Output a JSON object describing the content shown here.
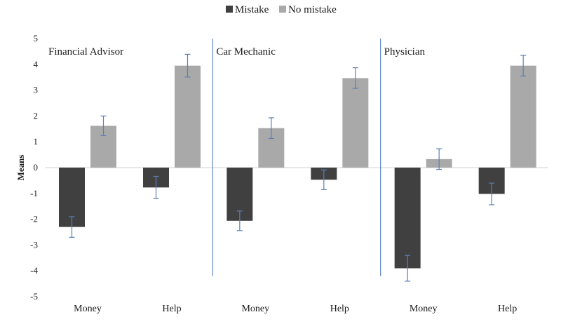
{
  "chart_data": {
    "type": "bar",
    "ylabel": "Means",
    "ylim": [
      -5,
      5
    ],
    "yticks": [
      -5,
      -4,
      -3,
      -2,
      -1,
      0,
      1,
      2,
      3,
      4,
      5
    ],
    "legend_position": "top-center",
    "grid": false,
    "panels": [
      {
        "label": "Financial Advisor",
        "categories": [
          "Money",
          "Help"
        ],
        "series": [
          {
            "name": "Mistake",
            "values": [
              -2.3,
              -0.77
            ],
            "error": [
              0.4,
              0.43
            ]
          },
          {
            "name": "No mistake",
            "values": [
              1.62,
              3.95
            ],
            "error": [
              0.38,
              0.44
            ]
          }
        ]
      },
      {
        "label": "Car Mechanic",
        "categories": [
          "Money",
          "Help"
        ],
        "series": [
          {
            "name": "Mistake",
            "values": [
              -2.06,
              -0.47
            ],
            "error": [
              0.38,
              0.38
            ]
          },
          {
            "name": "No mistake",
            "values": [
              1.53,
              3.47
            ],
            "error": [
              0.4,
              0.4
            ]
          }
        ]
      },
      {
        "label": "Physician",
        "categories": [
          "Money",
          "Help"
        ],
        "series": [
          {
            "name": "Mistake",
            "values": [
              -3.9,
              -1.02
            ],
            "error": [
              0.5,
              0.42
            ]
          },
          {
            "name": "No mistake",
            "values": [
              0.33,
              3.95
            ],
            "error": [
              0.4,
              0.4
            ]
          }
        ]
      }
    ],
    "colors": {
      "Mistake": "#404040",
      "No mistake": "#a9a9a9",
      "error_bar": "#5b7fb3",
      "divider": "#4472c4",
      "zero_line": "#d0d0d0"
    }
  }
}
